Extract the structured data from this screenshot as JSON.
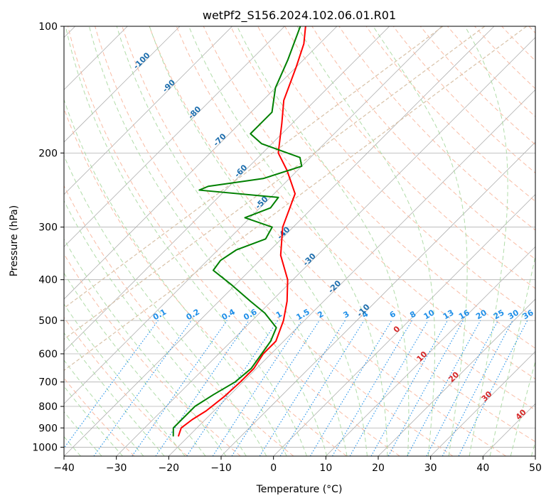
{
  "chart_data": {
    "type": "line",
    "subtype": "skew-t log-p diagram",
    "title": "wetPf2_S156.2024.102.06.01.R01",
    "xlabel": "Temperature (°C)",
    "ylabel": "Pressure (hPa)",
    "xlim": [
      -40,
      50
    ],
    "ylim": [
      1050,
      100
    ],
    "y_scale": "log",
    "grid": true,
    "x_ticks": [
      -40,
      -30,
      -20,
      -10,
      0,
      10,
      20,
      30,
      40,
      50
    ],
    "y_ticks": [
      100,
      200,
      300,
      400,
      500,
      600,
      700,
      800,
      900,
      1000
    ],
    "dry_adiabat_labels": [
      -100,
      -90,
      -80,
      -70,
      -60,
      -50,
      -40,
      -30,
      -20,
      -10
    ],
    "dry_adiabat_label_pressures": [
      122,
      140,
      162,
      188,
      223,
      265,
      313,
      362,
      420,
      478
    ],
    "moist_adiabat_labels": [
      0,
      10,
      20,
      30,
      40
    ],
    "moist_adiabat_label_pressures": [
      530,
      615,
      688,
      765,
      845
    ],
    "mixing_ratio_labels": [
      "0.1",
      "0.2",
      "0.4",
      "0.6",
      "1",
      "1.5",
      "2",
      "3",
      "4",
      "6",
      "8",
      "10",
      "13",
      "16",
      "20",
      "25",
      "30",
      "36"
    ],
    "mixing_ratio_values": [
      0.1,
      0.2,
      0.4,
      0.6,
      1,
      1.5,
      2,
      3,
      4,
      6,
      8,
      10,
      13,
      16,
      20,
      25,
      30,
      36
    ],
    "series": [
      {
        "name": "",
        "role": "temperature",
        "color": "#ff0000",
        "points": [
          {
            "p": 940,
            "t": -22
          },
          {
            "p": 900,
            "t": -23
          },
          {
            "p": 860,
            "t": -22.5
          },
          {
            "p": 820,
            "t": -21.5
          },
          {
            "p": 760,
            "t": -20.8
          },
          {
            "p": 700,
            "t": -20.5
          },
          {
            "p": 650,
            "t": -20.5
          },
          {
            "p": 600,
            "t": -21.5
          },
          {
            "p": 560,
            "t": -21.5
          },
          {
            "p": 500,
            "t": -24
          },
          {
            "p": 450,
            "t": -27
          },
          {
            "p": 400,
            "t": -31
          },
          {
            "p": 350,
            "t": -37
          },
          {
            "p": 300,
            "t": -42
          },
          {
            "p": 250,
            "t": -46
          },
          {
            "p": 220,
            "t": -52
          },
          {
            "p": 200,
            "t": -57
          },
          {
            "p": 170,
            "t": -62
          },
          {
            "p": 150,
            "t": -66
          },
          {
            "p": 125,
            "t": -70
          },
          {
            "p": 110,
            "t": -73
          },
          {
            "p": 100,
            "t": -76
          }
        ]
      },
      {
        "name": "",
        "role": "dewpoint",
        "color": "#008000",
        "points": [
          {
            "p": 940,
            "t": -23
          },
          {
            "p": 900,
            "t": -24.5
          },
          {
            "p": 860,
            "t": -24.5
          },
          {
            "p": 800,
            "t": -24.5
          },
          {
            "p": 750,
            "t": -23.2
          },
          {
            "p": 700,
            "t": -21.5
          },
          {
            "p": 650,
            "t": -21
          },
          {
            "p": 600,
            "t": -21.8
          },
          {
            "p": 560,
            "t": -22.5
          },
          {
            "p": 520,
            "t": -24
          },
          {
            "p": 480,
            "t": -29
          },
          {
            "p": 450,
            "t": -34
          },
          {
            "p": 410,
            "t": -41
          },
          {
            "p": 380,
            "t": -47
          },
          {
            "p": 360,
            "t": -47.5
          },
          {
            "p": 340,
            "t": -46.5
          },
          {
            "p": 320,
            "t": -43
          },
          {
            "p": 300,
            "t": -44
          },
          {
            "p": 285,
            "t": -51
          },
          {
            "p": 270,
            "t": -48
          },
          {
            "p": 255,
            "t": -48.5
          },
          {
            "p": 245,
            "t": -65
          },
          {
            "p": 240,
            "t": -64
          },
          {
            "p": 230,
            "t": -55
          },
          {
            "p": 215,
            "t": -50
          },
          {
            "p": 205,
            "t": -52
          },
          {
            "p": 190,
            "t": -62
          },
          {
            "p": 180,
            "t": -66
          },
          {
            "p": 170,
            "t": -66
          },
          {
            "p": 160,
            "t": -66
          },
          {
            "p": 140,
            "t": -70
          },
          {
            "p": 120,
            "t": -73
          },
          {
            "p": 100,
            "t": -77
          }
        ]
      }
    ]
  },
  "colors": {
    "temperature": "#ff0000",
    "dewpoint": "#008000",
    "isotherm": "#b0b0b0",
    "isobar": "#b0b0b0",
    "dry_adiabat": "#f8b59b",
    "moist_adiabat": "#a8d8a0",
    "mixing_ratio": "#1f8fe8",
    "dry_label": "#1f6fae",
    "moist_label": "#d62728",
    "zero_label": "#777777",
    "tan_lines": "#d8c2a8"
  }
}
